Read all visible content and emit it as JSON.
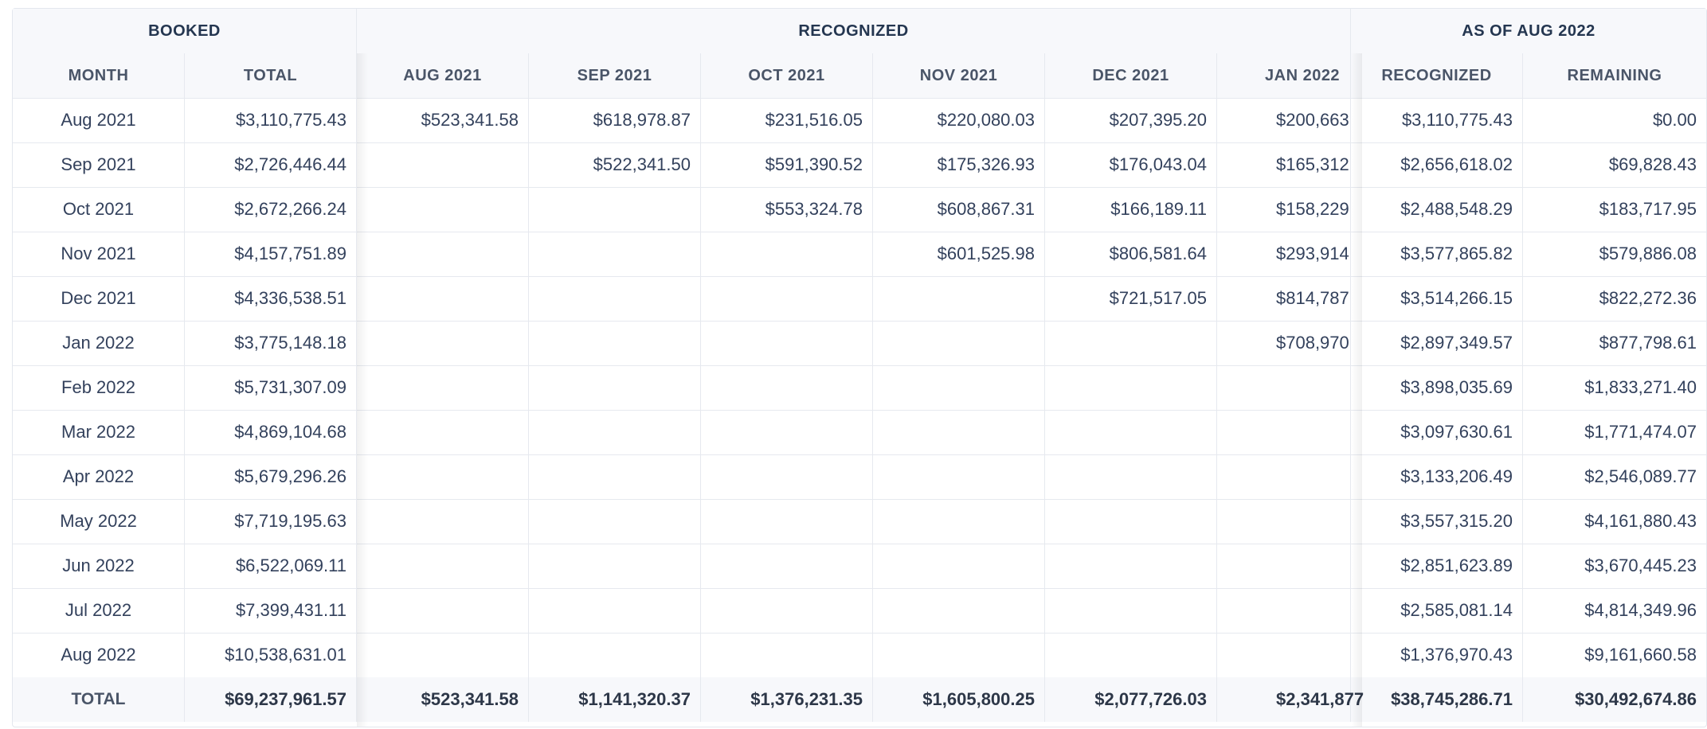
{
  "groups": {
    "booked": "BOOKED",
    "recognized": "RECOGNIZED",
    "as_of": "AS OF AUG 2022"
  },
  "columns": {
    "month": "MONTH",
    "total": "TOTAL",
    "periods": [
      "AUG 2021",
      "SEP 2021",
      "OCT 2021",
      "NOV 2021",
      "DEC 2021",
      "JAN 2022"
    ],
    "recognized": "RECOGNIZED",
    "remaining": "REMAINING"
  },
  "rows": [
    {
      "month": "Aug 2021",
      "total": "$3,110,775.43",
      "periods": [
        "$523,341.58",
        "$618,978.87",
        "$231,516.05",
        "$220,080.03",
        "$207,395.20",
        "$200,663"
      ],
      "recognized": "$3,110,775.43",
      "remaining": "$0.00"
    },
    {
      "month": "Sep 2021",
      "total": "$2,726,446.44",
      "periods": [
        "",
        "$522,341.50",
        "$591,390.52",
        "$175,326.93",
        "$176,043.04",
        "$165,312"
      ],
      "recognized": "$2,656,618.02",
      "remaining": "$69,828.43"
    },
    {
      "month": "Oct 2021",
      "total": "$2,672,266.24",
      "periods": [
        "",
        "",
        "$553,324.78",
        "$608,867.31",
        "$166,189.11",
        "$158,229"
      ],
      "recognized": "$2,488,548.29",
      "remaining": "$183,717.95"
    },
    {
      "month": "Nov 2021",
      "total": "$4,157,751.89",
      "periods": [
        "",
        "",
        "",
        "$601,525.98",
        "$806,581.64",
        "$293,914"
      ],
      "recognized": "$3,577,865.82",
      "remaining": "$579,886.08"
    },
    {
      "month": "Dec 2021",
      "total": "$4,336,538.51",
      "periods": [
        "",
        "",
        "",
        "",
        "$721,517.05",
        "$814,787"
      ],
      "recognized": "$3,514,266.15",
      "remaining": "$822,272.36"
    },
    {
      "month": "Jan 2022",
      "total": "$3,775,148.18",
      "periods": [
        "",
        "",
        "",
        "",
        "",
        "$708,970"
      ],
      "recognized": "$2,897,349.57",
      "remaining": "$877,798.61"
    },
    {
      "month": "Feb 2022",
      "total": "$5,731,307.09",
      "periods": [
        "",
        "",
        "",
        "",
        "",
        ""
      ],
      "recognized": "$3,898,035.69",
      "remaining": "$1,833,271.40"
    },
    {
      "month": "Mar 2022",
      "total": "$4,869,104.68",
      "periods": [
        "",
        "",
        "",
        "",
        "",
        ""
      ],
      "recognized": "$3,097,630.61",
      "remaining": "$1,771,474.07"
    },
    {
      "month": "Apr 2022",
      "total": "$5,679,296.26",
      "periods": [
        "",
        "",
        "",
        "",
        "",
        ""
      ],
      "recognized": "$3,133,206.49",
      "remaining": "$2,546,089.77"
    },
    {
      "month": "May 2022",
      "total": "$7,719,195.63",
      "periods": [
        "",
        "",
        "",
        "",
        "",
        ""
      ],
      "recognized": "$3,557,315.20",
      "remaining": "$4,161,880.43"
    },
    {
      "month": "Jun 2022",
      "total": "$6,522,069.11",
      "periods": [
        "",
        "",
        "",
        "",
        "",
        ""
      ],
      "recognized": "$2,851,623.89",
      "remaining": "$3,670,445.23"
    },
    {
      "month": "Jul 2022",
      "total": "$7,399,431.11",
      "periods": [
        "",
        "",
        "",
        "",
        "",
        ""
      ],
      "recognized": "$2,585,081.14",
      "remaining": "$4,814,349.96"
    },
    {
      "month": "Aug 2022",
      "total": "$10,538,631.01",
      "periods": [
        "",
        "",
        "",
        "",
        "",
        ""
      ],
      "recognized": "$1,376,970.43",
      "remaining": "$9,161,660.58"
    }
  ],
  "totals": {
    "label": "TOTAL",
    "total": "$69,237,961.57",
    "periods": [
      "$523,341.58",
      "$1,141,320.37",
      "$1,376,231.35",
      "$1,605,800.25",
      "$2,077,726.03",
      "$2,341,877"
    ],
    "recognized": "$38,745,286.71",
    "remaining": "$30,492,674.86"
  }
}
